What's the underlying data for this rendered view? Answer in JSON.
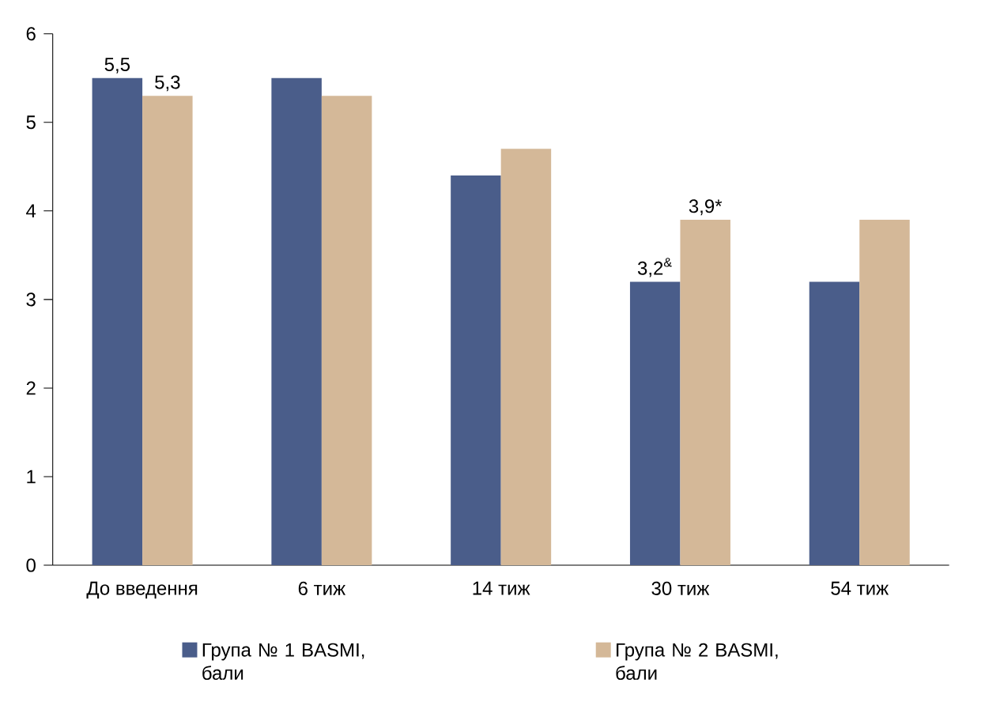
{
  "chart_data": {
    "type": "bar",
    "categories": [
      "До введення",
      "6 тиж",
      "14 тиж",
      "30 тиж",
      "54 тиж"
    ],
    "series": [
      {
        "name": "Група № 1 BASMI, бали",
        "color": "#4a5d8a",
        "values": [
          5.5,
          5.5,
          4.4,
          3.2,
          3.2
        ],
        "value_labels": [
          "5,5",
          null,
          null,
          "3,2$^{&}$",
          null
        ]
      },
      {
        "name": "Група № 2 BASMI, бали",
        "color": "#d4b898",
        "values": [
          5.3,
          5.3,
          4.7,
          3.9,
          3.9
        ],
        "value_labels": [
          "5,3",
          null,
          null,
          "3,9*",
          null
        ]
      }
    ],
    "ylim": [
      0,
      6
    ],
    "yticks": [
      0,
      1,
      2,
      3,
      4,
      5,
      6
    ],
    "grid": false,
    "legend": "bottom"
  }
}
